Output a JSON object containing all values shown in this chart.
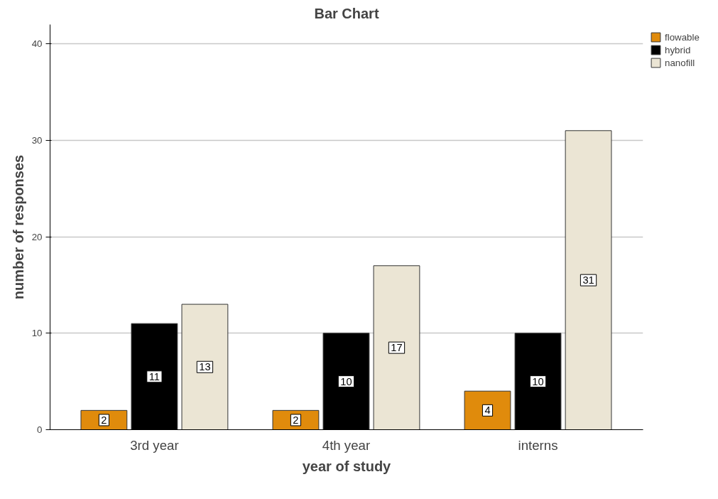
{
  "chart_data": {
    "type": "bar",
    "title": "Bar Chart",
    "xlabel": "year of study",
    "ylabel": "number of responses",
    "categories": [
      "3rd year",
      "4th year",
      "interns"
    ],
    "series": [
      {
        "name": "flowable",
        "color": "#e08b0c",
        "values": [
          2,
          2,
          4
        ]
      },
      {
        "name": "hybrid",
        "color": "#000000",
        "values": [
          11,
          10,
          10
        ]
      },
      {
        "name": "nanofill",
        "color": "#ebe5d4",
        "values": [
          13,
          17,
          31
        ]
      }
    ],
    "ylim": [
      0,
      42
    ],
    "yticks": [
      0,
      10,
      20,
      30,
      40
    ],
    "grid": "y",
    "legend": "top right",
    "data_labels": true
  }
}
